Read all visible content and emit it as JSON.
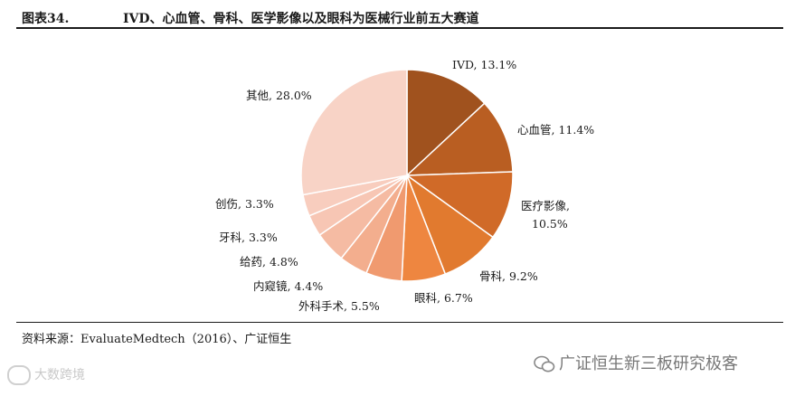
{
  "header": {
    "figure_number": "图表34.",
    "title": "IVD、心血管、骨科、医学影像以及眼科为医械行业前五大赛道"
  },
  "source": "资料来源：EvaluateMedtech（2016）、广证恒生",
  "watermarks": {
    "left": "大数跨境",
    "right": "广证恒生新三板研究极客"
  },
  "chart_data": {
    "type": "pie",
    "title": "",
    "start_angle_deg": 0,
    "direction": "clockwise",
    "slices": [
      {
        "name": "IVD",
        "value": 13.1,
        "label": "IVD, 13.1%",
        "color": "#A0521E"
      },
      {
        "name": "心血管",
        "value": 11.4,
        "label": "心血管, 11.4%",
        "color": "#B95E22"
      },
      {
        "name": "医疗影像",
        "value": 10.5,
        "label_lines": [
          "医疗影像,",
          "10.5%"
        ],
        "color": "#D06A28"
      },
      {
        "name": "骨科",
        "value": 9.2,
        "label": "骨科, 9.2%",
        "color": "#E17A2F"
      },
      {
        "name": "眼科",
        "value": 6.7,
        "label": "眼科, 6.7%",
        "color": "#EE8640"
      },
      {
        "name": "外科手术",
        "value": 5.5,
        "label": "外科手术, 5.5%",
        "color": "#F09A6F"
      },
      {
        "name": "内窥镜",
        "value": 4.4,
        "label": "内窥镜, 4.4%",
        "color": "#F3AE8E"
      },
      {
        "name": "给药",
        "value": 4.8,
        "label": "给药, 4.8%",
        "color": "#F5BBA3"
      },
      {
        "name": "牙科",
        "value": 3.3,
        "label": "牙科, 3.3%",
        "color": "#F7C6B4"
      },
      {
        "name": "创伤",
        "value": 3.3,
        "label": "创伤, 3.3%",
        "color": "#F8CDBE"
      },
      {
        "name": "其他",
        "value": 28.0,
        "label": "其他, 28.0%",
        "color": "#F8D3C6"
      }
    ]
  }
}
